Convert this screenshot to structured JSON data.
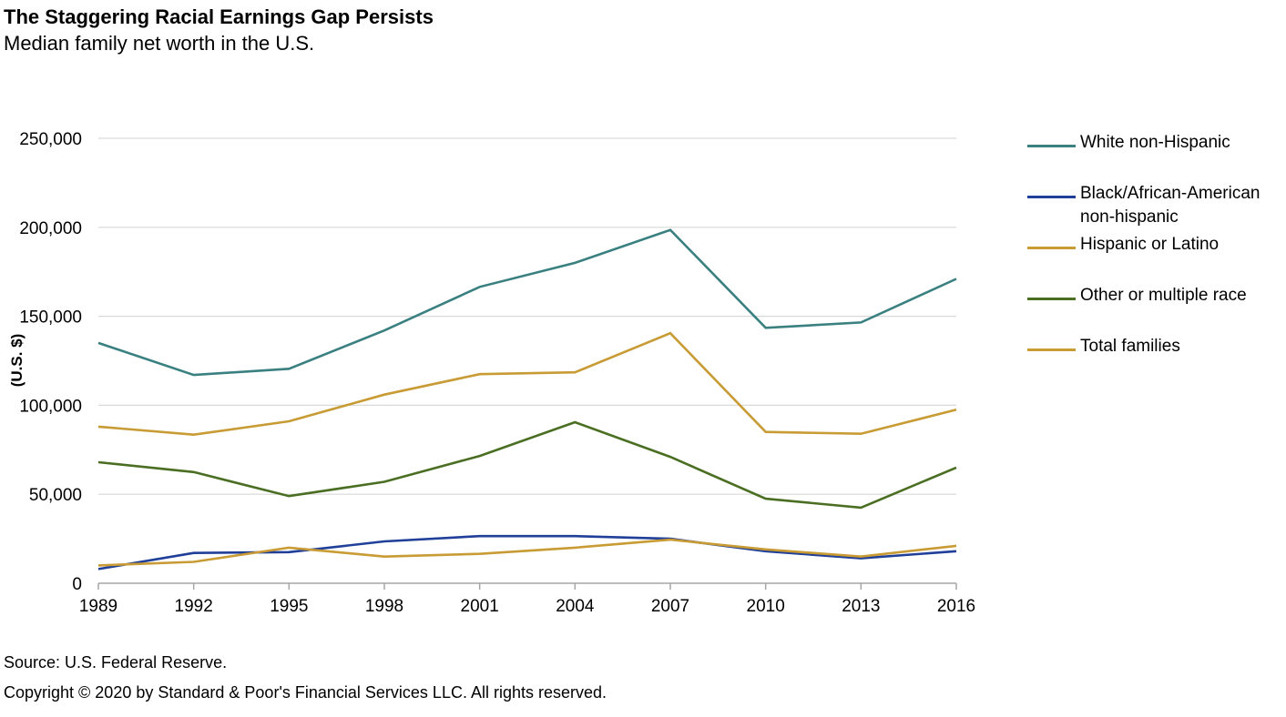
{
  "header": {
    "title": "The Staggering Racial Earnings Gap Persists",
    "subtitle": "Median family net worth in the U.S."
  },
  "footer": {
    "source": "Source: U.S. Federal Reserve.",
    "copyright": "Copyright © 2020 by Standard & Poor's Financial Services LLC. All rights reserved."
  },
  "chart_data": {
    "type": "line",
    "title": "The Staggering Racial Earnings Gap Persists",
    "subtitle": "Median family net worth in the U.S.",
    "xlabel": "",
    "ylabel": "(U.S. $)",
    "x": [
      "1989",
      "1992",
      "1995",
      "1998",
      "2001",
      "2004",
      "2007",
      "2010",
      "2013",
      "2016"
    ],
    "ylim": [
      0,
      250000
    ],
    "yticks": [
      0,
      50000,
      100000,
      150000,
      200000,
      250000
    ],
    "ytick_labels": [
      "0",
      "50,000",
      "100,000",
      "150,000",
      "200,000",
      "250,000"
    ],
    "grid": true,
    "legend_position": "right",
    "series": [
      {
        "name": "White non-Hispanic",
        "color": "#3a8080",
        "values": [
          135000,
          117000,
          120500,
          142000,
          166500,
          180000,
          198500,
          143500,
          146500,
          171000
        ]
      },
      {
        "name": "Black/African-American non-hispanic",
        "color": "#1f3f99",
        "values": [
          8000,
          17000,
          17500,
          23500,
          26500,
          26500,
          25000,
          18000,
          14000,
          18000
        ]
      },
      {
        "name": "Hispanic or Latino",
        "color": "#c89b35",
        "values": [
          10000,
          12000,
          20000,
          15000,
          16500,
          20000,
          24500,
          19000,
          15000,
          21000
        ]
      },
      {
        "name": "Other or multiple race",
        "color": "#4a6e22",
        "values": [
          68000,
          62500,
          49000,
          57000,
          71500,
          90500,
          71000,
          47500,
          42500,
          65000
        ]
      },
      {
        "name": "Total families",
        "color": "#c89b35",
        "values": [
          88000,
          83500,
          91000,
          106000,
          117500,
          118500,
          140500,
          85000,
          84000,
          97500
        ]
      }
    ]
  }
}
